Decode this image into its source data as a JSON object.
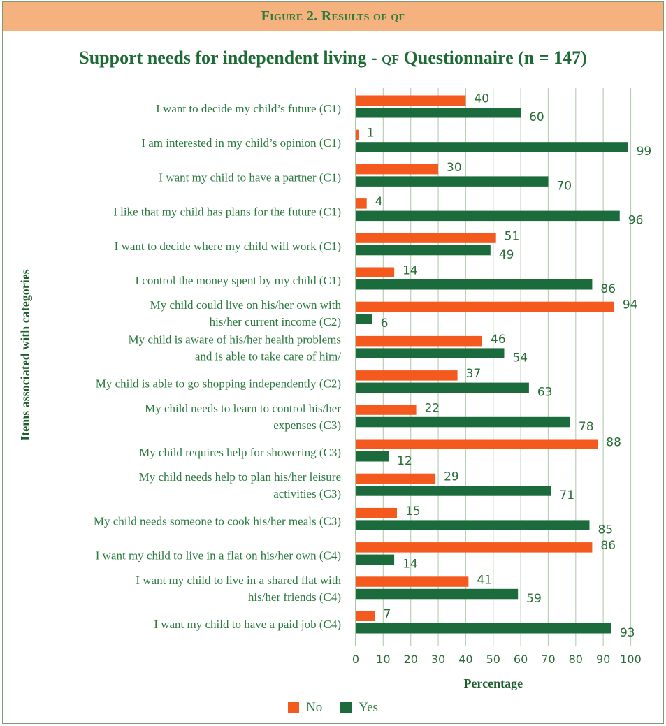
{
  "header": {
    "figure_label": "Figure 2. Results of qf"
  },
  "title": {
    "prefix": "Support needs for independent living - ",
    "qf": "qf",
    "suffix": " Questionnaire (n = 147)"
  },
  "colors": {
    "no": "#f4591d",
    "yes": "#1b6b3d",
    "grid": "#b9d1b4",
    "text": "#2a7a3e"
  },
  "chart_data": {
    "type": "bar",
    "orientation": "horizontal",
    "xlabel": "Percentage",
    "ylabel": "Items associated with categories",
    "xlim": [
      0,
      100
    ],
    "xticks": [
      0,
      10,
      20,
      30,
      40,
      50,
      60,
      70,
      80,
      90,
      100
    ],
    "grid": true,
    "legend_position": "bottom",
    "categories": [
      [
        "I want to decide my child’s future (C1)"
      ],
      [
        "I am interested  in my child’s opinion (C1)"
      ],
      [
        "I want my child to have a partner (C1)"
      ],
      [
        "I like that my child has plans for the future (C1)"
      ],
      [
        "I want to decide where my child will work (C1)"
      ],
      [
        "I control the money spent by my child (C1)"
      ],
      [
        "My child could live on his/her own with",
        "his/her current income (C2)"
      ],
      [
        "My child is aware of his/her health problems",
        "and is able to take care of him/"
      ],
      [
        "My child is able to go shopping independently (C2)"
      ],
      [
        "My child needs to learn to control his/her",
        "expenses (C3)"
      ],
      [
        "My child requires help for showering (C3)"
      ],
      [
        "My child needs help to plan his/her leisure",
        "activities (C3)"
      ],
      [
        "My child needs someone to cook his/her meals (C3)"
      ],
      [
        "I want my child to live in a flat on his/her own (C4)"
      ],
      [
        "I want my child to live in a shared flat with",
        "his/her friends (C4)"
      ],
      [
        "I want my child to have a paid job (C4)"
      ]
    ],
    "series": [
      {
        "name": "No",
        "values": [
          40,
          1,
          30,
          4,
          51,
          14,
          94,
          46,
          37,
          22,
          88,
          29,
          15,
          86,
          41,
          7
        ]
      },
      {
        "name": "Yes",
        "values": [
          60,
          99,
          70,
          96,
          49,
          86,
          6,
          54,
          63,
          78,
          12,
          71,
          85,
          14,
          59,
          93
        ]
      }
    ]
  }
}
